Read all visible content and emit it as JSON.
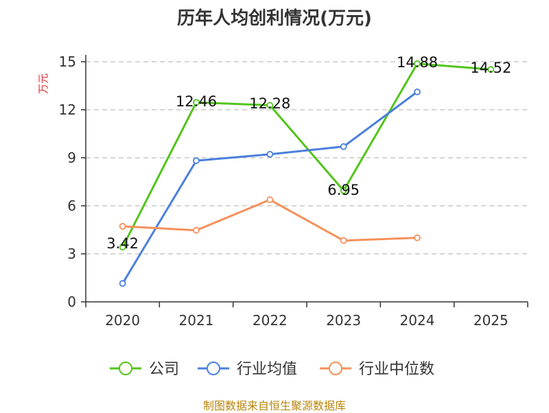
{
  "chart_data": {
    "type": "line",
    "title": "历年人均创利情况(万元)",
    "ylabel": "万元",
    "xlabel": "",
    "categories": [
      "2020",
      "2021",
      "2022",
      "2023",
      "2024",
      "2025"
    ],
    "ylim": [
      0,
      15
    ],
    "yticks": [
      0,
      3,
      6,
      9,
      12,
      15
    ],
    "grid": true,
    "legend_position": "bottom",
    "series": [
      {
        "name": "公司",
        "color": "#52c41a",
        "values": [
          3.42,
          12.46,
          12.28,
          6.95,
          14.88,
          14.52
        ],
        "labels": [
          "3.42",
          "12.46",
          "12.28",
          "6.95",
          "14.88",
          "14.52"
        ]
      },
      {
        "name": "行业均值",
        "color": "#4a7fdc",
        "values": [
          1.15,
          8.82,
          9.22,
          9.7,
          13.12,
          null
        ]
      },
      {
        "name": "行业中位数",
        "color": "#f5905a",
        "values": [
          4.72,
          4.47,
          6.38,
          3.83,
          4.0,
          null
        ]
      }
    ]
  },
  "source": "制图数据来自恒生聚源数据库"
}
